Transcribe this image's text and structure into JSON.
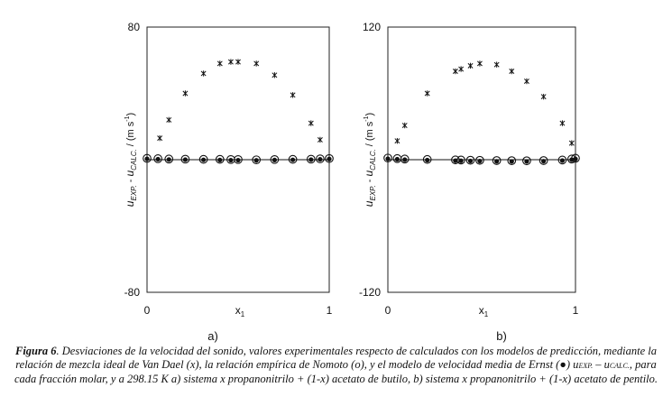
{
  "chart_data": [
    {
      "type": "scatter",
      "panel_label": "a)",
      "xlabel": "x1",
      "ylabel": "u EXP. - u CALC. / (m s-1)",
      "xlim": [
        0,
        1
      ],
      "ylim": [
        -80,
        80
      ],
      "x_ticks": [
        "0",
        "1"
      ],
      "y_ticks": [
        "80",
        "-80"
      ],
      "series": [
        {
          "marker": "x",
          "x": [
            0.07,
            0.12,
            0.21,
            0.31,
            0.4,
            0.46,
            0.5,
            0.6,
            0.7,
            0.8,
            0.9,
            0.95
          ],
          "y": [
            13,
            24,
            40,
            52,
            58,
            59,
            59,
            58,
            51,
            39,
            22,
            12
          ]
        },
        {
          "marker": "o",
          "x": [
            0.0,
            0.06,
            0.12,
            0.21,
            0.31,
            0.4,
            0.46,
            0.5,
            0.6,
            0.7,
            0.8,
            0.9,
            0.95,
            1.0
          ],
          "y": [
            0.8,
            0.6,
            0.4,
            0.3,
            0.2,
            0.2,
            0.1,
            0.1,
            -0.1,
            0.1,
            0.2,
            0.3,
            0.5,
            0.7
          ]
        },
        {
          "marker": "filled-circle",
          "x": [
            0.0,
            0.06,
            0.12,
            0.21,
            0.31,
            0.4,
            0.46,
            0.5,
            0.6,
            0.7,
            0.8,
            0.9,
            0.95,
            1.0
          ],
          "y": [
            0.5,
            0.3,
            0.1,
            0.0,
            -0.1,
            -0.2,
            -0.3,
            -0.3,
            -0.4,
            -0.2,
            -0.1,
            0.0,
            0.2,
            0.4
          ]
        }
      ]
    },
    {
      "type": "scatter",
      "panel_label": "b)",
      "xlabel": "x1",
      "ylabel": "u EXP. - u CALC. / (m s-1)",
      "xlim": [
        0,
        1
      ],
      "ylim": [
        -120,
        120
      ],
      "x_ticks": [
        "0",
        "1"
      ],
      "y_ticks": [
        "120",
        "-120"
      ],
      "series": [
        {
          "marker": "x",
          "x": [
            0.05,
            0.09,
            0.21,
            0.36,
            0.39,
            0.44,
            0.49,
            0.58,
            0.66,
            0.74,
            0.83,
            0.93,
            0.98
          ],
          "y": [
            17,
            31,
            60,
            80,
            82,
            85,
            87,
            86,
            80,
            71,
            57,
            33,
            15
          ]
        },
        {
          "marker": "o",
          "x": [
            0.0,
            0.05,
            0.09,
            0.21,
            0.36,
            0.39,
            0.44,
            0.49,
            0.58,
            0.66,
            0.74,
            0.83,
            0.93,
            0.98,
            1.0
          ],
          "y": [
            1.5,
            1.0,
            0.6,
            0.2,
            -0.2,
            -0.3,
            -0.5,
            -0.6,
            -0.8,
            -0.9,
            -1.0,
            -0.8,
            -0.3,
            0.6,
            1.3
          ]
        },
        {
          "marker": "filled-circle",
          "x": [
            0.0,
            0.05,
            0.09,
            0.21,
            0.36,
            0.39,
            0.44,
            0.49,
            0.58,
            0.66,
            0.74,
            0.83,
            0.93,
            0.98,
            1.0
          ],
          "y": [
            0.8,
            0.4,
            0.0,
            -0.4,
            -0.9,
            -1.0,
            -1.2,
            -1.3,
            -1.5,
            -1.6,
            -1.6,
            -1.4,
            -0.8,
            0.0,
            0.6
          ]
        }
      ]
    }
  ],
  "caption": {
    "label": "Figura 6",
    "text": ". Desviaciones de la velocidad del sonido, valores experimentales respecto de calculados con los modelos de predicción, mediante la relación de mezcla ideal de Van Dael (x), la relación empírica de Nomoto (o), y el modelo de velocidad media de Ernst (●) u",
    "sub1": "EXP.",
    "mid": " – u",
    "sub2": "CALC.",
    "text2": ", para cada fracción molar, y a 298.15 K a) sistema x propanonitrilo + (1-x) acetato de butilo, b) sistema x propanonitrilo + (1-x) acetato de pentilo."
  }
}
